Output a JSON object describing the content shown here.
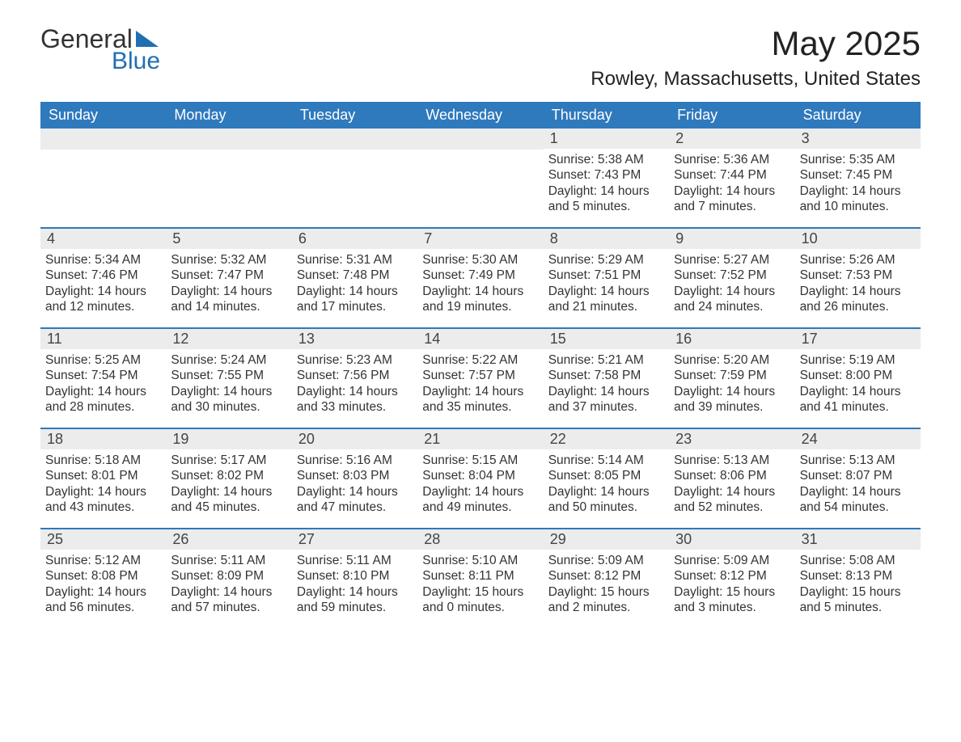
{
  "logo": {
    "word1": "General",
    "word2": "Blue"
  },
  "title": "May 2025",
  "location": "Rowley, Massachusetts, United States",
  "colors": {
    "header_bg": "#2f79bd",
    "header_text": "#ffffff",
    "daynum_bg": "#ececec",
    "border": "#2f79bd",
    "logo_blue": "#1f6fb2",
    "body_text": "#333333",
    "page_bg": "#ffffff"
  },
  "typography": {
    "month_title_fontsize": 42,
    "location_fontsize": 24,
    "dow_fontsize": 18,
    "daynum_fontsize": 18,
    "body_fontsize": 15.5
  },
  "daysOfWeek": [
    "Sunday",
    "Monday",
    "Tuesday",
    "Wednesday",
    "Thursday",
    "Friday",
    "Saturday"
  ],
  "weeks": [
    [
      {
        "empty": true
      },
      {
        "empty": true
      },
      {
        "empty": true
      },
      {
        "empty": true
      },
      {
        "num": "1",
        "sunrise": "Sunrise: 5:38 AM",
        "sunset": "Sunset: 7:43 PM",
        "daylight": "Daylight: 14 hours and 5 minutes."
      },
      {
        "num": "2",
        "sunrise": "Sunrise: 5:36 AM",
        "sunset": "Sunset: 7:44 PM",
        "daylight": "Daylight: 14 hours and 7 minutes."
      },
      {
        "num": "3",
        "sunrise": "Sunrise: 5:35 AM",
        "sunset": "Sunset: 7:45 PM",
        "daylight": "Daylight: 14 hours and 10 minutes."
      }
    ],
    [
      {
        "num": "4",
        "sunrise": "Sunrise: 5:34 AM",
        "sunset": "Sunset: 7:46 PM",
        "daylight": "Daylight: 14 hours and 12 minutes."
      },
      {
        "num": "5",
        "sunrise": "Sunrise: 5:32 AM",
        "sunset": "Sunset: 7:47 PM",
        "daylight": "Daylight: 14 hours and 14 minutes."
      },
      {
        "num": "6",
        "sunrise": "Sunrise: 5:31 AM",
        "sunset": "Sunset: 7:48 PM",
        "daylight": "Daylight: 14 hours and 17 minutes."
      },
      {
        "num": "7",
        "sunrise": "Sunrise: 5:30 AM",
        "sunset": "Sunset: 7:49 PM",
        "daylight": "Daylight: 14 hours and 19 minutes."
      },
      {
        "num": "8",
        "sunrise": "Sunrise: 5:29 AM",
        "sunset": "Sunset: 7:51 PM",
        "daylight": "Daylight: 14 hours and 21 minutes."
      },
      {
        "num": "9",
        "sunrise": "Sunrise: 5:27 AM",
        "sunset": "Sunset: 7:52 PM",
        "daylight": "Daylight: 14 hours and 24 minutes."
      },
      {
        "num": "10",
        "sunrise": "Sunrise: 5:26 AM",
        "sunset": "Sunset: 7:53 PM",
        "daylight": "Daylight: 14 hours and 26 minutes."
      }
    ],
    [
      {
        "num": "11",
        "sunrise": "Sunrise: 5:25 AM",
        "sunset": "Sunset: 7:54 PM",
        "daylight": "Daylight: 14 hours and 28 minutes."
      },
      {
        "num": "12",
        "sunrise": "Sunrise: 5:24 AM",
        "sunset": "Sunset: 7:55 PM",
        "daylight": "Daylight: 14 hours and 30 minutes."
      },
      {
        "num": "13",
        "sunrise": "Sunrise: 5:23 AM",
        "sunset": "Sunset: 7:56 PM",
        "daylight": "Daylight: 14 hours and 33 minutes."
      },
      {
        "num": "14",
        "sunrise": "Sunrise: 5:22 AM",
        "sunset": "Sunset: 7:57 PM",
        "daylight": "Daylight: 14 hours and 35 minutes."
      },
      {
        "num": "15",
        "sunrise": "Sunrise: 5:21 AM",
        "sunset": "Sunset: 7:58 PM",
        "daylight": "Daylight: 14 hours and 37 minutes."
      },
      {
        "num": "16",
        "sunrise": "Sunrise: 5:20 AM",
        "sunset": "Sunset: 7:59 PM",
        "daylight": "Daylight: 14 hours and 39 minutes."
      },
      {
        "num": "17",
        "sunrise": "Sunrise: 5:19 AM",
        "sunset": "Sunset: 8:00 PM",
        "daylight": "Daylight: 14 hours and 41 minutes."
      }
    ],
    [
      {
        "num": "18",
        "sunrise": "Sunrise: 5:18 AM",
        "sunset": "Sunset: 8:01 PM",
        "daylight": "Daylight: 14 hours and 43 minutes."
      },
      {
        "num": "19",
        "sunrise": "Sunrise: 5:17 AM",
        "sunset": "Sunset: 8:02 PM",
        "daylight": "Daylight: 14 hours and 45 minutes."
      },
      {
        "num": "20",
        "sunrise": "Sunrise: 5:16 AM",
        "sunset": "Sunset: 8:03 PM",
        "daylight": "Daylight: 14 hours and 47 minutes."
      },
      {
        "num": "21",
        "sunrise": "Sunrise: 5:15 AM",
        "sunset": "Sunset: 8:04 PM",
        "daylight": "Daylight: 14 hours and 49 minutes."
      },
      {
        "num": "22",
        "sunrise": "Sunrise: 5:14 AM",
        "sunset": "Sunset: 8:05 PM",
        "daylight": "Daylight: 14 hours and 50 minutes."
      },
      {
        "num": "23",
        "sunrise": "Sunrise: 5:13 AM",
        "sunset": "Sunset: 8:06 PM",
        "daylight": "Daylight: 14 hours and 52 minutes."
      },
      {
        "num": "24",
        "sunrise": "Sunrise: 5:13 AM",
        "sunset": "Sunset: 8:07 PM",
        "daylight": "Daylight: 14 hours and 54 minutes."
      }
    ],
    [
      {
        "num": "25",
        "sunrise": "Sunrise: 5:12 AM",
        "sunset": "Sunset: 8:08 PM",
        "daylight": "Daylight: 14 hours and 56 minutes."
      },
      {
        "num": "26",
        "sunrise": "Sunrise: 5:11 AM",
        "sunset": "Sunset: 8:09 PM",
        "daylight": "Daylight: 14 hours and 57 minutes."
      },
      {
        "num": "27",
        "sunrise": "Sunrise: 5:11 AM",
        "sunset": "Sunset: 8:10 PM",
        "daylight": "Daylight: 14 hours and 59 minutes."
      },
      {
        "num": "28",
        "sunrise": "Sunrise: 5:10 AM",
        "sunset": "Sunset: 8:11 PM",
        "daylight": "Daylight: 15 hours and 0 minutes."
      },
      {
        "num": "29",
        "sunrise": "Sunrise: 5:09 AM",
        "sunset": "Sunset: 8:12 PM",
        "daylight": "Daylight: 15 hours and 2 minutes."
      },
      {
        "num": "30",
        "sunrise": "Sunrise: 5:09 AM",
        "sunset": "Sunset: 8:12 PM",
        "daylight": "Daylight: 15 hours and 3 minutes."
      },
      {
        "num": "31",
        "sunrise": "Sunrise: 5:08 AM",
        "sunset": "Sunset: 8:13 PM",
        "daylight": "Daylight: 15 hours and 5 minutes."
      }
    ]
  ]
}
